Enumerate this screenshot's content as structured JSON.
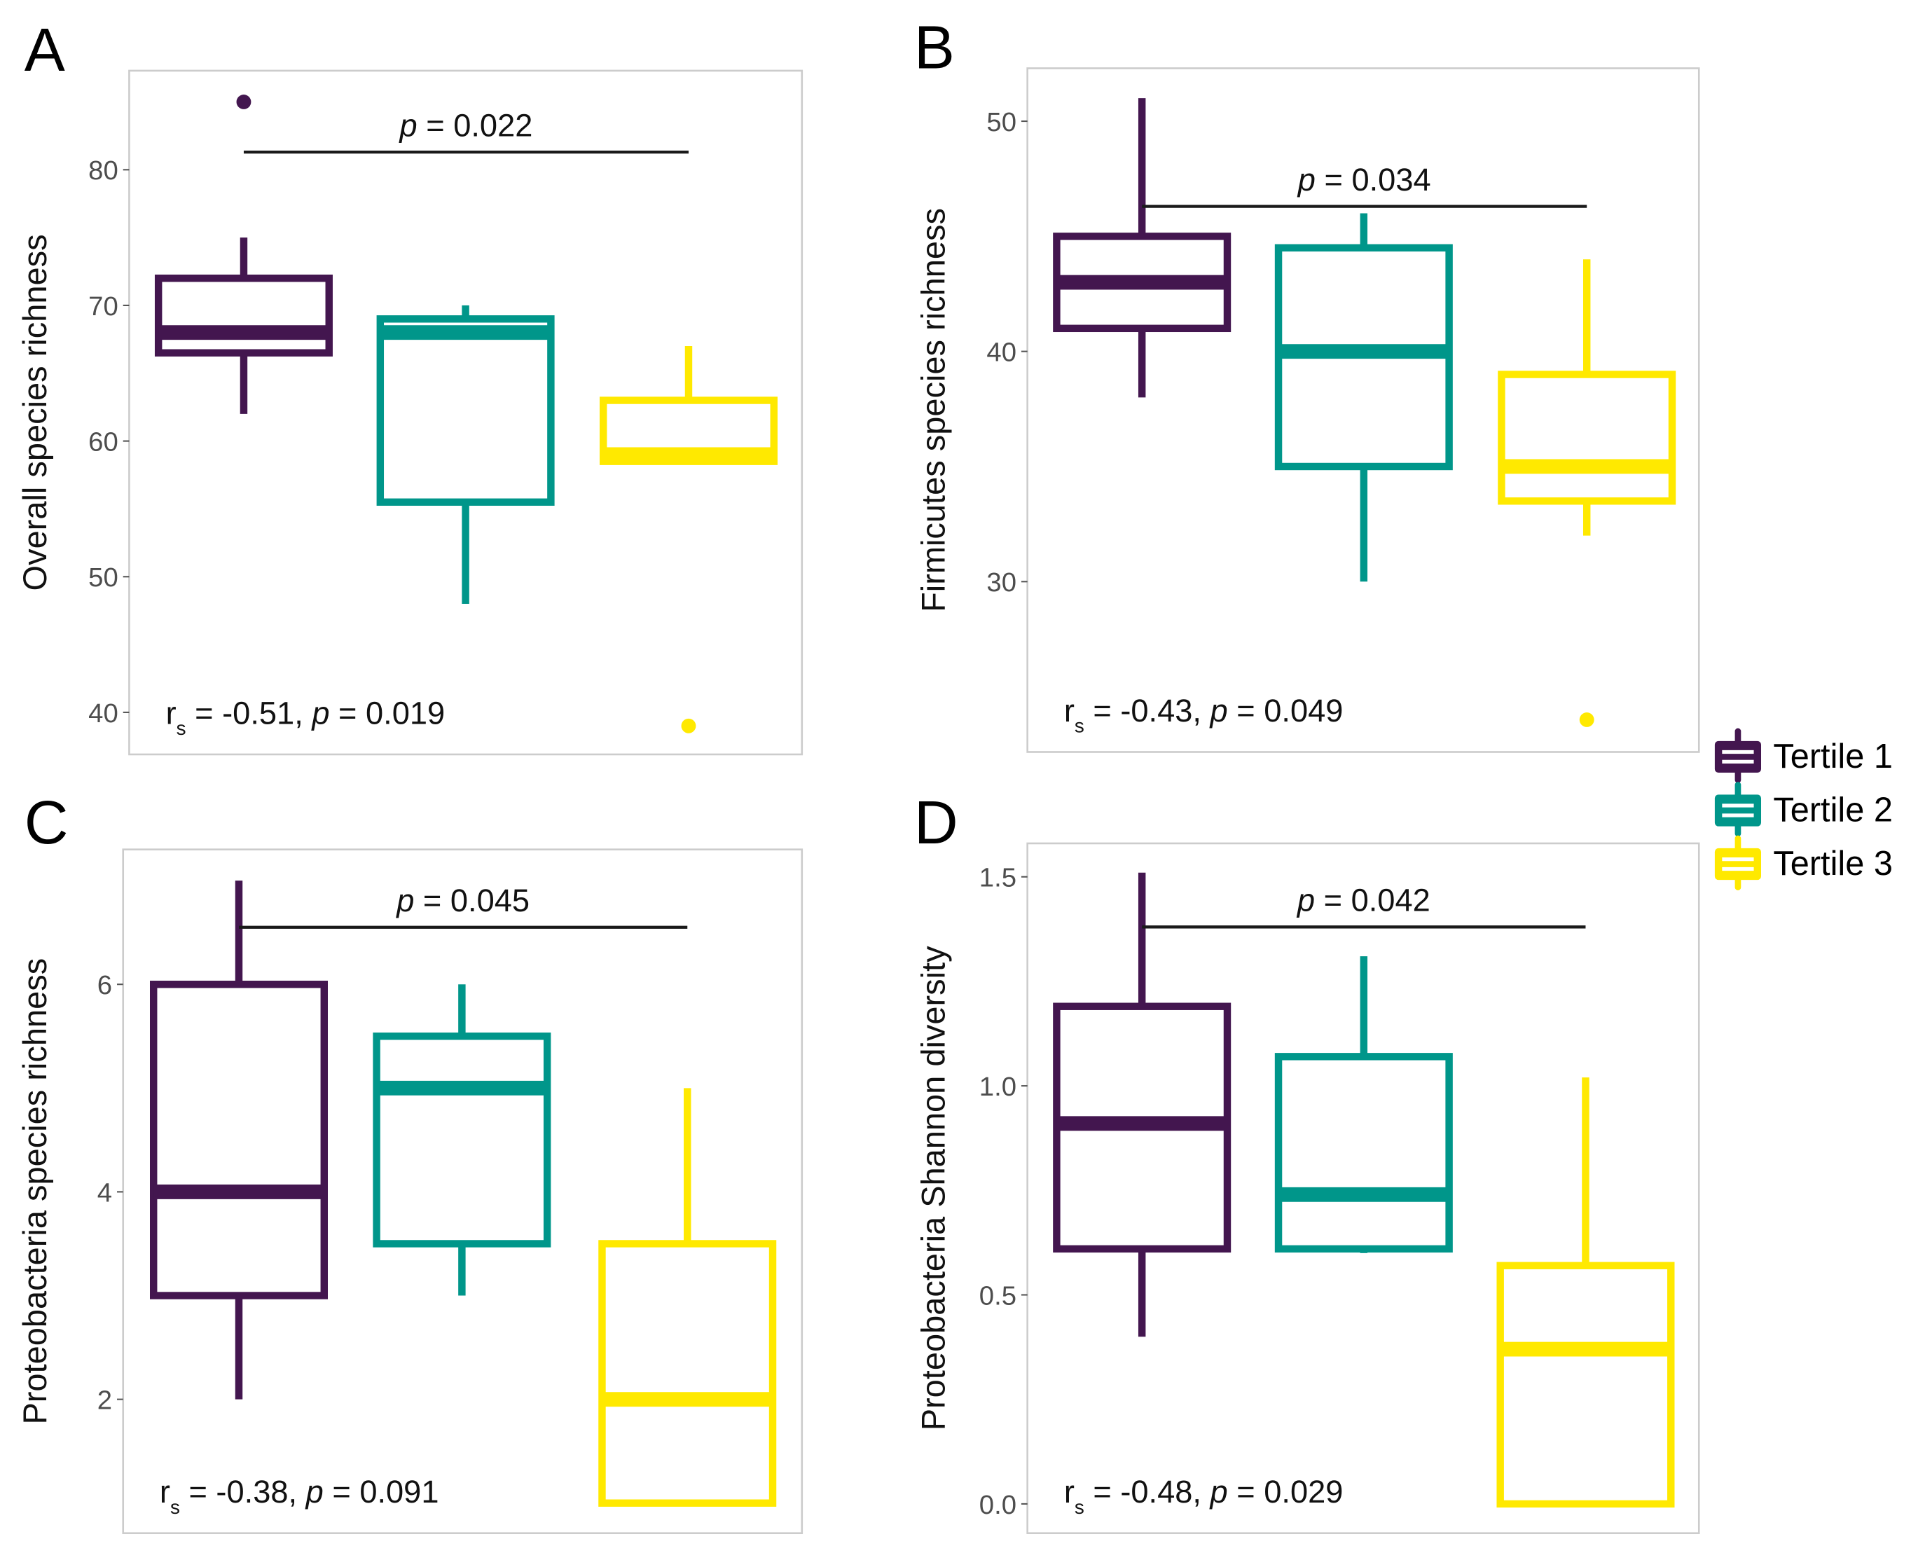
{
  "colors": {
    "Tertile 1": "#43164f",
    "Tertile 2": "#00968a",
    "Tertile 3": "#ffe900",
    "panel_border": "#cccccc",
    "bracket": "#1a1a1a"
  },
  "legend": {
    "entries": [
      "Tertile 1",
      "Tertile 2",
      "Tertile 3"
    ],
    "placement": "right"
  },
  "chart_data": [
    {
      "panel": "A",
      "type": "box",
      "ylabel": "Overall species richness",
      "yticks": [
        40,
        50,
        60,
        70,
        80
      ],
      "ylim": [
        36.9,
        87.3
      ],
      "categories": [
        "Tertile 1",
        "Tertile 2",
        "Tertile 3"
      ],
      "boxes": [
        {
          "min": 62,
          "q1": 66.5,
          "median": 68,
          "q3": 72,
          "max": 75,
          "outliers": [
            85
          ]
        },
        {
          "min": 48,
          "q1": 55.5,
          "median": 68,
          "q3": 69,
          "max": 70,
          "outliers": []
        },
        {
          "min": 58.5,
          "q1": 58.5,
          "median": 59,
          "q3": 63,
          "max": 67,
          "outliers": [
            39
          ]
        }
      ],
      "bracket": {
        "y": 81.3,
        "p_prefix": "p",
        "p_text": " = 0.022"
      },
      "corr": {
        "r": "r",
        "sub": "s",
        "text1": " = -0.51, ",
        "p": "p",
        "text2": " = 0.019"
      }
    },
    {
      "panel": "B",
      "type": "box",
      "ylabel": "Firmicutes species richness",
      "yticks": [
        30,
        40,
        50
      ],
      "ylim": [
        22.6,
        52.3
      ],
      "categories": [
        "Tertile 1",
        "Tertile 2",
        "Tertile 3"
      ],
      "boxes": [
        {
          "min": 38,
          "q1": 41,
          "median": 43,
          "q3": 45,
          "max": 51,
          "outliers": []
        },
        {
          "min": 30,
          "q1": 35,
          "median": 40,
          "q3": 44.5,
          "max": 46,
          "outliers": []
        },
        {
          "min": 32,
          "q1": 33.5,
          "median": 35,
          "q3": 39,
          "max": 44,
          "outliers": [
            24
          ]
        }
      ],
      "bracket": {
        "y": 46.3,
        "p_prefix": "p",
        "p_text": " = 0.034"
      },
      "corr": {
        "r": "r",
        "sub": "s",
        "text1": " = -0.43, ",
        "p": "p",
        "text2": " = 0.049"
      }
    },
    {
      "panel": "C",
      "type": "box",
      "ylabel": "Proteobacteria species richness",
      "yticks": [
        2,
        4,
        6
      ],
      "ylim": [
        0.71,
        7.3
      ],
      "categories": [
        "Tertile 1",
        "Tertile 2",
        "Tertile 3"
      ],
      "boxes": [
        {
          "min": 2,
          "q1": 3,
          "median": 4,
          "q3": 6,
          "max": 7,
          "outliers": []
        },
        {
          "min": 3,
          "q1": 3.5,
          "median": 5,
          "q3": 5.5,
          "max": 6,
          "outliers": []
        },
        {
          "min": 1,
          "q1": 1,
          "median": 2,
          "q3": 3.5,
          "max": 5,
          "outliers": []
        }
      ],
      "bracket": {
        "y": 6.55,
        "p_prefix": "p",
        "p_text": " = 0.045"
      },
      "corr": {
        "r": "r",
        "sub": "s",
        "text1": " = -0.38, ",
        "p": "p",
        "text2": " = 0.091"
      }
    },
    {
      "panel": "D",
      "type": "box",
      "ylabel": "Proteobacteria Shannon diversity",
      "yticks": [
        0.0,
        0.5,
        1.0,
        1.5
      ],
      "ytick_labels": [
        "0.0",
        "0.5",
        "1.0",
        "1.5"
      ],
      "ylim": [
        -0.07,
        1.58
      ],
      "categories": [
        "Tertile 1",
        "Tertile 2",
        "Tertile 3"
      ],
      "boxes": [
        {
          "min": 0.4,
          "q1": 0.61,
          "median": 0.91,
          "q3": 1.19,
          "max": 1.51,
          "outliers": []
        },
        {
          "min": 0.6,
          "q1": 0.61,
          "median": 0.74,
          "q3": 1.07,
          "max": 1.31,
          "outliers": []
        },
        {
          "min": 0.0,
          "q1": 0.0,
          "median": 0.37,
          "q3": 0.57,
          "max": 1.02,
          "outliers": []
        }
      ],
      "bracket": {
        "y": 1.38,
        "p_prefix": "p",
        "p_text": " = 0.042"
      },
      "corr": {
        "r": "r",
        "sub": "s",
        "text1": " = -0.48, ",
        "p": "p",
        "text2": " = 0.029"
      }
    }
  ]
}
